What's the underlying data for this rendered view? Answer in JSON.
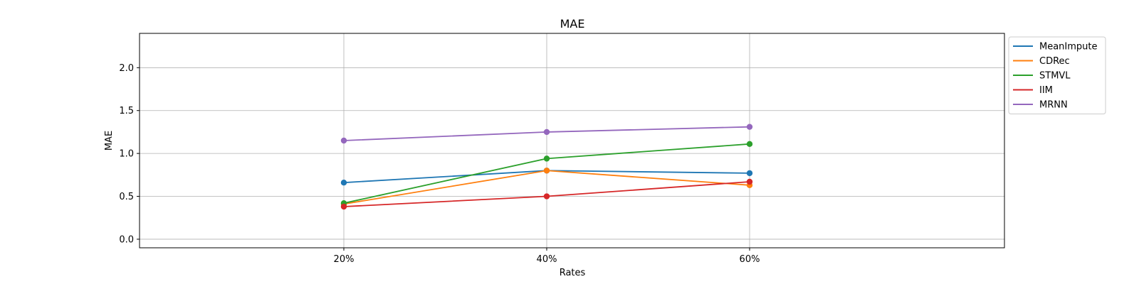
{
  "chart_data": {
    "type": "line",
    "title": "MAE",
    "xlabel": "Rates",
    "ylabel": "MAE",
    "categories": [
      "20%",
      "40%",
      "60%"
    ],
    "ylim": [
      -0.1,
      2.4
    ],
    "yticks": [
      0.0,
      0.5,
      1.0,
      1.5,
      2.0
    ],
    "ytick_labels": [
      "0.0",
      "0.5",
      "1.0",
      "1.5",
      "2.0"
    ],
    "grid": true,
    "legend_position": "outside-top-right",
    "series": [
      {
        "name": "MeanImpute",
        "color": "#1f77b4",
        "values": [
          0.66,
          0.8,
          0.77
        ]
      },
      {
        "name": "CDRec",
        "color": "#ff7f0e",
        "values": [
          0.41,
          0.8,
          0.63
        ]
      },
      {
        "name": "STMVL",
        "color": "#2ca02c",
        "values": [
          0.42,
          0.94,
          1.11
        ]
      },
      {
        "name": "IIM",
        "color": "#d62728",
        "values": [
          0.38,
          0.5,
          0.67
        ]
      },
      {
        "name": "MRNN",
        "color": "#9467bd",
        "values": [
          1.15,
          1.25,
          1.31
        ]
      }
    ]
  }
}
